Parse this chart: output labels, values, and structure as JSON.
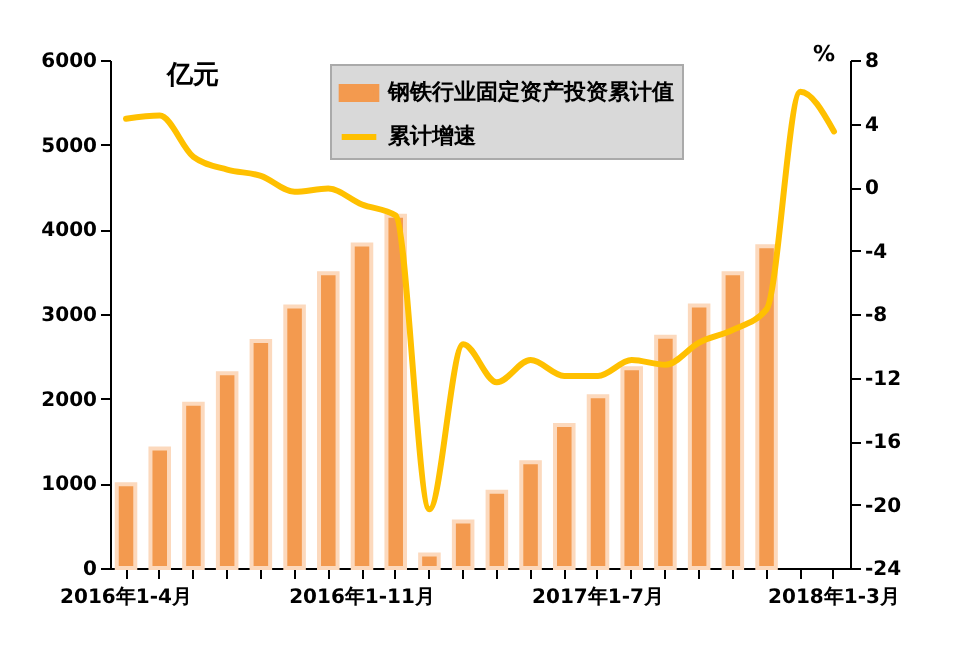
{
  "chart_data": {
    "type": "bar",
    "categories": [
      "2016年1-4月",
      null,
      null,
      null,
      null,
      null,
      null,
      "2016年1-11月",
      null,
      null,
      null,
      null,
      null,
      null,
      "2017年1-7月",
      null,
      null,
      null,
      null,
      null,
      null,
      "2018年1-3月"
    ],
    "ylabel": "亿元",
    "y2label": "%",
    "ylim": [
      0,
      6000
    ],
    "yticks": [
      0,
      1000,
      2000,
      3000,
      4000,
      5000,
      6000
    ],
    "y2lim": [
      -24,
      8
    ],
    "y2ticks": [
      -24,
      -20,
      -16,
      -12,
      -8,
      -4,
      0,
      4,
      8
    ],
    "series": [
      {
        "name": "钢铁行业固定资产投资累计值",
        "color": "#f39a4f",
        "values": [
          990,
          1410,
          1940,
          2300,
          2680,
          3090,
          3480,
          3820,
          4160,
          160,
          550,
          900,
          1250,
          1690,
          2030,
          2360,
          2730,
          3100,
          3480,
          3800,
          null,
          null
        ]
      },
      {
        "name": "累计增速",
        "type": "line",
        "axis": "y2",
        "color": "#ffc000",
        "values": [
          4.3,
          4.5,
          1.9,
          1.1,
          0.7,
          -0.3,
          -0.1,
          -1.1,
          -1.8,
          -20.3,
          -9.9,
          -12.3,
          -10.9,
          -11.9,
          -11.9,
          -10.9,
          -11.2,
          -9.8,
          -9.0,
          -7.7,
          6.0,
          3.5
        ]
      }
    ],
    "legend": "top",
    "grid": false,
    "marker": "none"
  }
}
